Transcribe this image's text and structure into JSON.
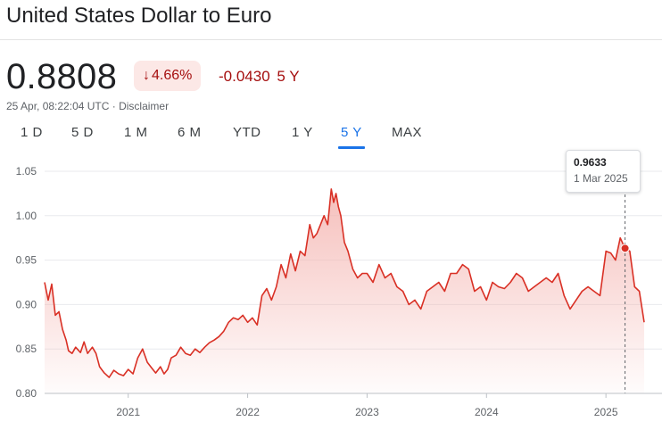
{
  "header": {
    "title": "United States Dollar to Euro"
  },
  "quote": {
    "price": "0.8808",
    "change_percent": "4.66%",
    "change_arrow": "↓",
    "change_abs": "-0.0430",
    "change_period": "5 Y",
    "timestamp": "25 Apr, 08:22:04 UTC",
    "separator": " · ",
    "disclaimer": "Disclaimer"
  },
  "ranges": {
    "items": [
      "1 D",
      "5 D",
      "1 M",
      "6 M",
      "YTD",
      "1 Y",
      "5 Y",
      "MAX"
    ],
    "selected": "5 Y"
  },
  "tooltip": {
    "value": "0.9633",
    "date": "1 Mar 2025"
  },
  "colors": {
    "line": "#d93025",
    "fill_top": "#f4b4b0",
    "gridline": "#e8eaed",
    "negative": "#a50e0e",
    "accent": "#1a73e8"
  },
  "chart_data": {
    "type": "area",
    "x_unit": "year",
    "x_ticks": [
      "2021",
      "2022",
      "2023",
      "2024",
      "2025"
    ],
    "y_ticks": [
      "1.05",
      "1.00",
      "0.95",
      "0.90",
      "0.85",
      "0.80"
    ],
    "ylim": [
      0.8,
      1.05
    ],
    "xlim": [
      2020.3,
      2025.32
    ],
    "grid": true,
    "highlight": {
      "x": 2025.16,
      "y": 0.9633
    },
    "series": [
      {
        "x": [
          2020.3,
          2020.33,
          2020.36,
          2020.39,
          2020.42,
          2020.45,
          2020.48,
          2020.5,
          2020.53,
          2020.56,
          2020.6,
          2020.63,
          2020.66,
          2020.7,
          2020.73,
          2020.76,
          2020.8,
          2020.84,
          2020.88,
          2020.92,
          2020.96,
          2021.0,
          2021.04,
          2021.08,
          2021.12,
          2021.16,
          2021.2,
          2021.23,
          2021.27,
          2021.3,
          2021.33,
          2021.36,
          2021.4,
          2021.44,
          2021.48,
          2021.52,
          2021.56,
          2021.6,
          2021.64,
          2021.68,
          2021.72,
          2021.76,
          2021.8,
          2021.84,
          2021.88,
          2021.92,
          2021.96,
          2022.0,
          2022.04,
          2022.08,
          2022.12,
          2022.16,
          2022.2,
          2022.24,
          2022.28,
          2022.32,
          2022.36,
          2022.4,
          2022.44,
          2022.48,
          2022.52,
          2022.55,
          2022.58,
          2022.61,
          2022.64,
          2022.67,
          2022.7,
          2022.72,
          2022.74,
          2022.76,
          2022.78,
          2022.81,
          2022.84,
          2022.88,
          2022.92,
          2022.96,
          2023.0,
          2023.05,
          2023.1,
          2023.15,
          2023.2,
          2023.25,
          2023.3,
          2023.35,
          2023.4,
          2023.45,
          2023.5,
          2023.55,
          2023.6,
          2023.65,
          2023.7,
          2023.75,
          2023.8,
          2023.85,
          2023.9,
          2023.95,
          2024.0,
          2024.05,
          2024.1,
          2024.15,
          2024.2,
          2024.25,
          2024.3,
          2024.35,
          2024.4,
          2024.45,
          2024.5,
          2024.55,
          2024.6,
          2024.65,
          2024.7,
          2024.75,
          2024.8,
          2024.85,
          2024.9,
          2024.95,
          2025.0,
          2025.04,
          2025.08,
          2025.12,
          2025.16,
          2025.2,
          2025.24,
          2025.28,
          2025.32
        ],
        "y": [
          0.925,
          0.905,
          0.923,
          0.888,
          0.892,
          0.872,
          0.86,
          0.848,
          0.845,
          0.852,
          0.846,
          0.858,
          0.845,
          0.852,
          0.845,
          0.83,
          0.823,
          0.818,
          0.826,
          0.822,
          0.82,
          0.827,
          0.822,
          0.84,
          0.85,
          0.835,
          0.828,
          0.823,
          0.83,
          0.822,
          0.827,
          0.84,
          0.843,
          0.852,
          0.845,
          0.843,
          0.85,
          0.846,
          0.852,
          0.857,
          0.86,
          0.864,
          0.87,
          0.88,
          0.885,
          0.883,
          0.888,
          0.88,
          0.885,
          0.877,
          0.91,
          0.918,
          0.905,
          0.92,
          0.945,
          0.93,
          0.957,
          0.938,
          0.96,
          0.955,
          0.99,
          0.975,
          0.98,
          0.99,
          1.0,
          0.99,
          1.03,
          1.015,
          1.025,
          1.01,
          1.0,
          0.97,
          0.96,
          0.94,
          0.93,
          0.935,
          0.935,
          0.925,
          0.945,
          0.93,
          0.935,
          0.92,
          0.915,
          0.9,
          0.905,
          0.895,
          0.915,
          0.92,
          0.925,
          0.915,
          0.935,
          0.935,
          0.945,
          0.94,
          0.915,
          0.92,
          0.905,
          0.925,
          0.92,
          0.918,
          0.925,
          0.935,
          0.93,
          0.915,
          0.92,
          0.925,
          0.93,
          0.925,
          0.935,
          0.91,
          0.895,
          0.905,
          0.915,
          0.92,
          0.915,
          0.91,
          0.96,
          0.958,
          0.95,
          0.975,
          0.9633,
          0.96,
          0.92,
          0.915,
          0.88
        ]
      }
    ]
  }
}
